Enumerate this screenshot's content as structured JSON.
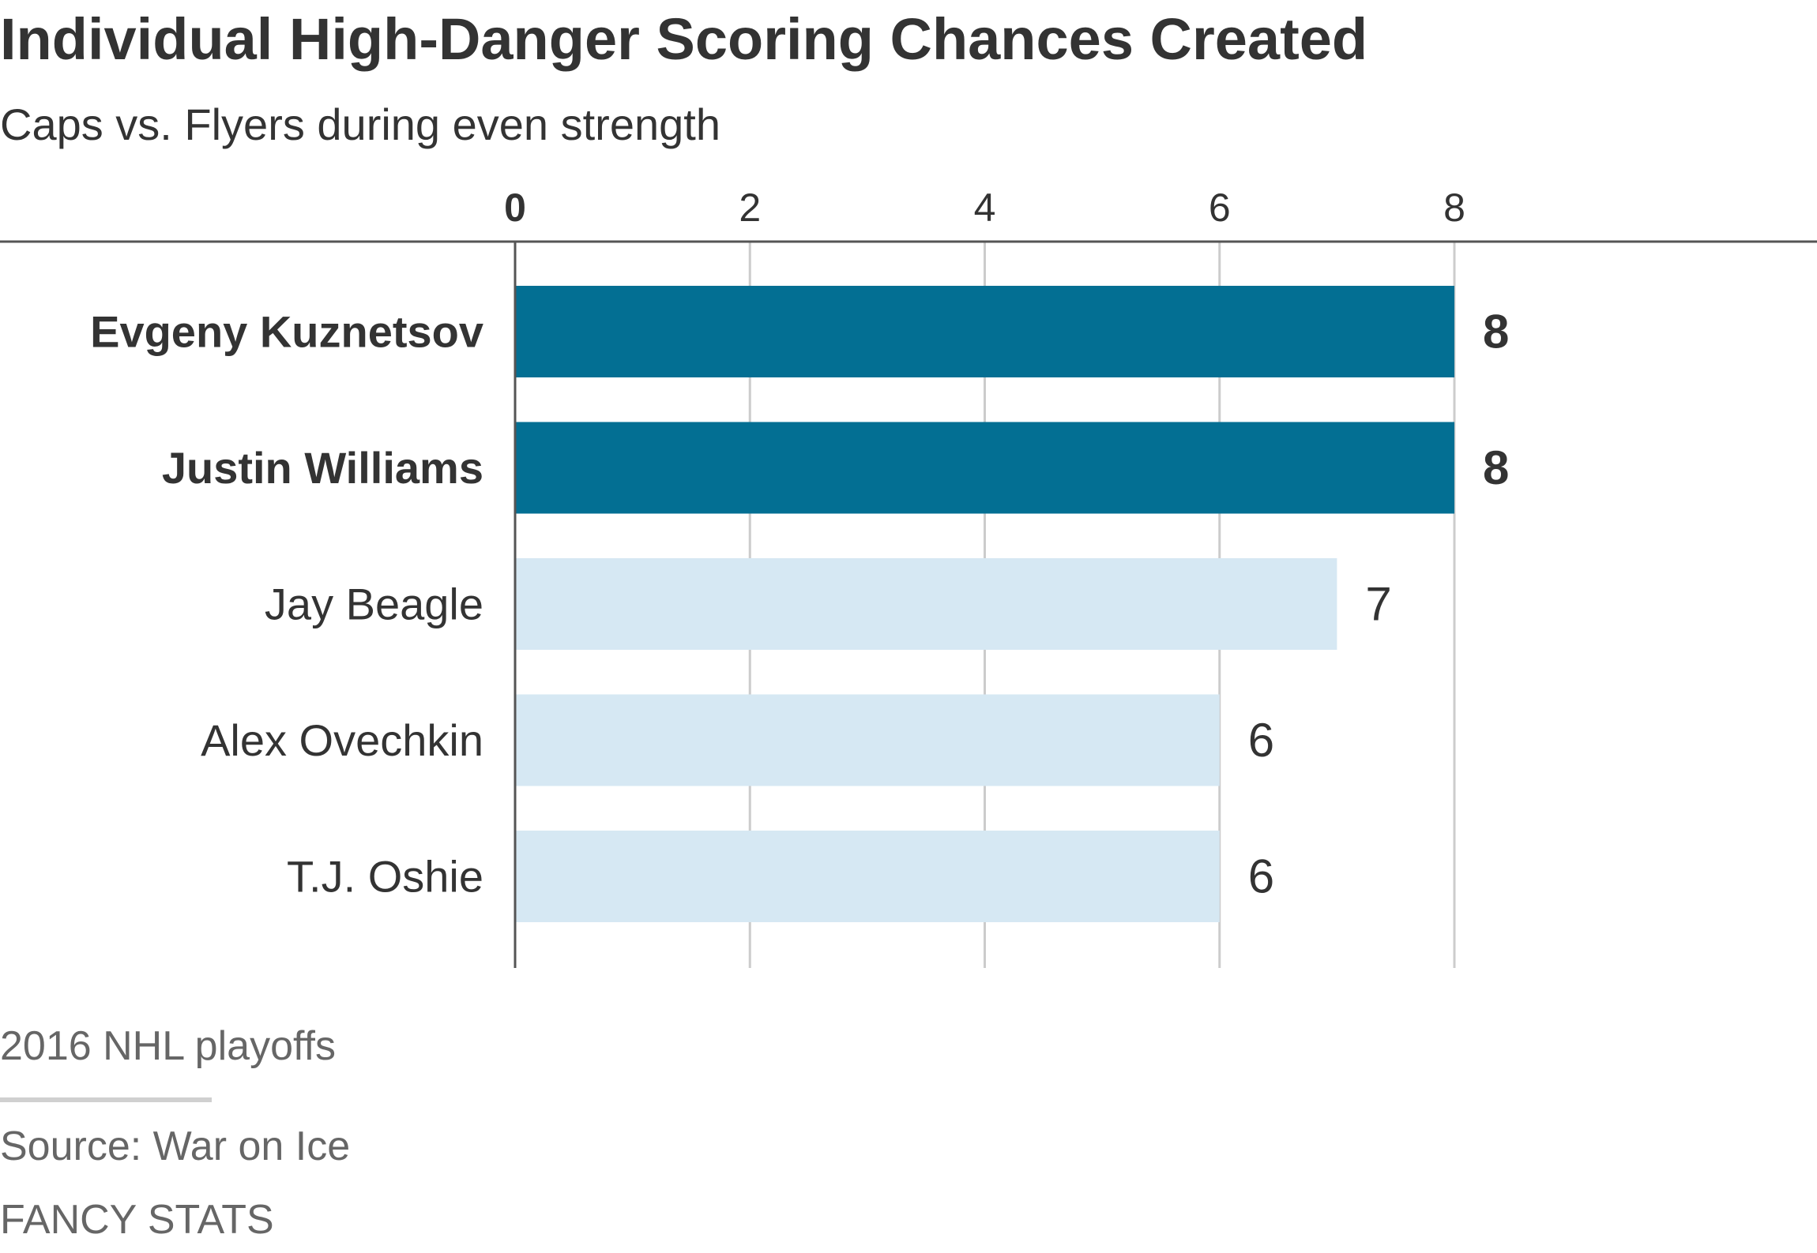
{
  "title": "Individual High-Danger Scoring Chances Created",
  "subtitle": "Caps vs. Flyers during even strength",
  "note": "2016 NHL playoffs",
  "source": "Source: War on Ice",
  "brand": "FANCY STATS",
  "colors": {
    "highlight": "#036f93",
    "muted": "#d6e8f3",
    "gridline": "#cccccc",
    "axis": "#555555",
    "text": "#333333",
    "footnote": "#666666"
  },
  "chart_data": {
    "type": "bar",
    "orientation": "horizontal",
    "categories": [
      "Evgeny Kuznetsov",
      "Justin Williams",
      "Jay Beagle",
      "Alex Ovechkin",
      "T.J. Oshie"
    ],
    "values": [
      8,
      8,
      7,
      6,
      6
    ],
    "highlighted": [
      true,
      true,
      false,
      false,
      false
    ],
    "xlim": [
      0,
      8
    ],
    "xticks": [
      0,
      2,
      4,
      6,
      8
    ],
    "grid": true,
    "legend": "none"
  }
}
